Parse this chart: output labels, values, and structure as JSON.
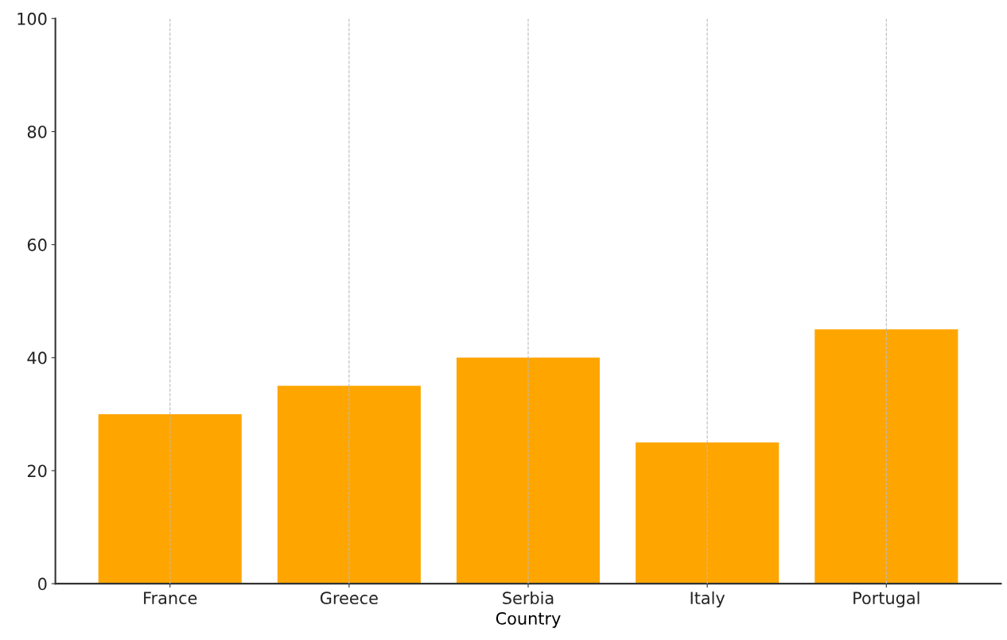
{
  "chart_data": {
    "type": "bar",
    "xlabel": "Country",
    "categories": [
      "France",
      "Greece",
      "Serbia",
      "Italy",
      "Portugal"
    ],
    "values": [
      30,
      35,
      40,
      25,
      45
    ],
    "color": "#ffa500",
    "ylim": [
      0,
      100
    ],
    "yticks": [
      0,
      20,
      40,
      60,
      80,
      100
    ],
    "grid": "x"
  }
}
